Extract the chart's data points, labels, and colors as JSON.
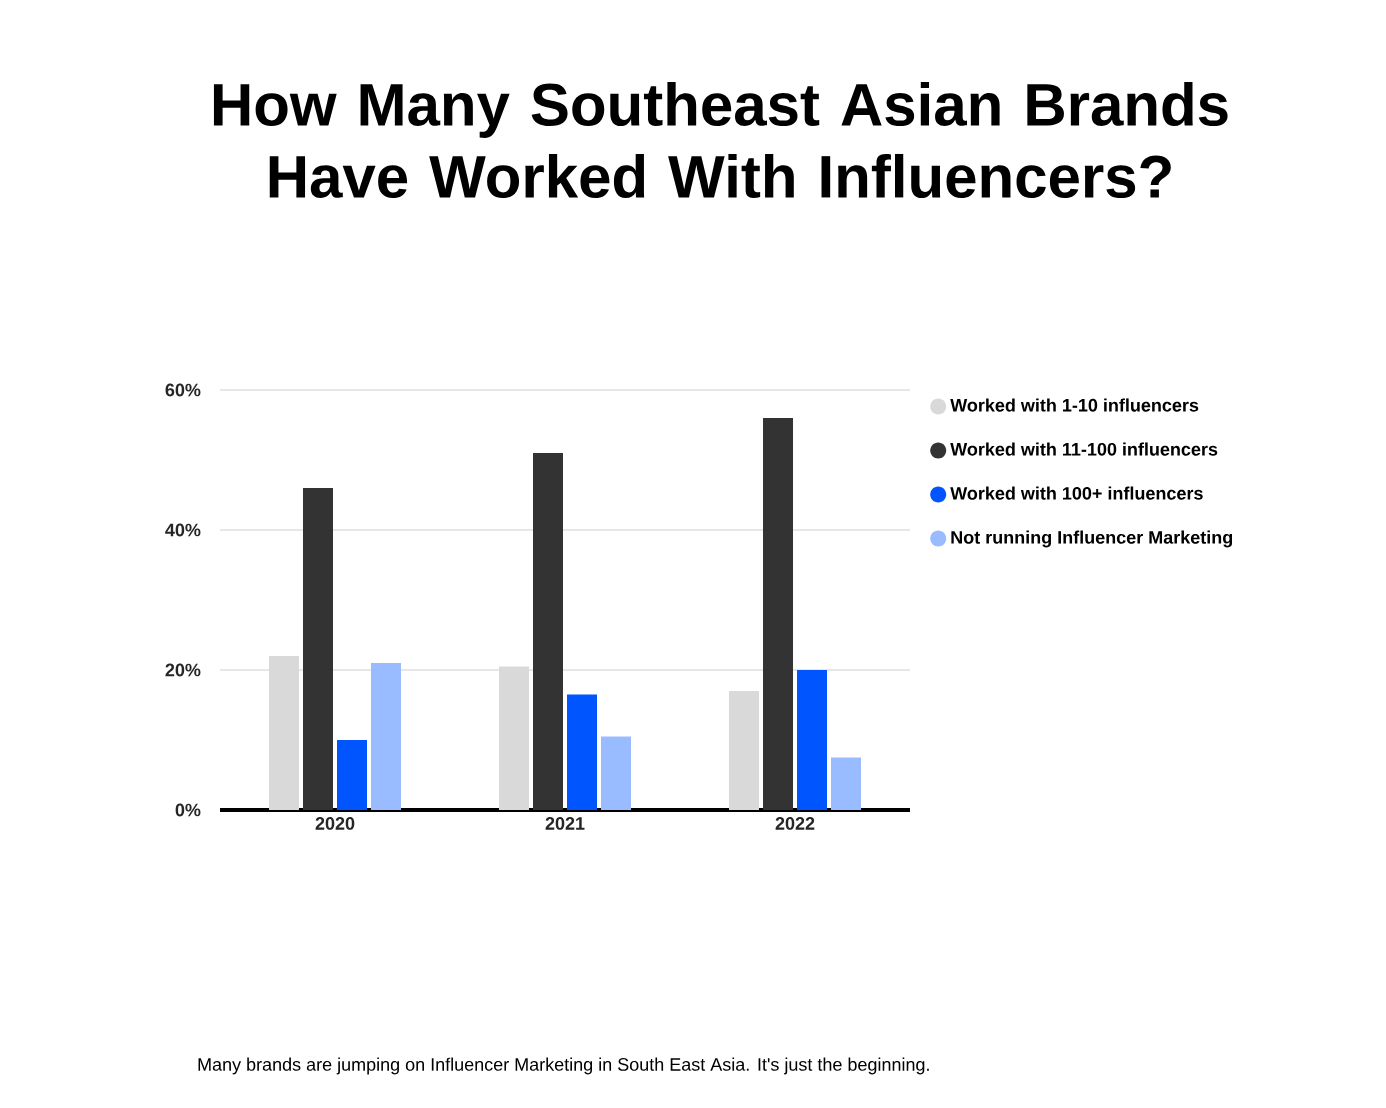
{
  "chart_data": {
    "type": "bar",
    "title": "How Many Southeast Asian Brands Have Worked With Influencers?",
    "categories": [
      "2020",
      "2021",
      "2022"
    ],
    "series": [
      {
        "name": "Worked with 1-10 influencers",
        "color": "#d9d9d9",
        "values": [
          22,
          20.5,
          17
        ]
      },
      {
        "name": "Worked with 11-100 influencers",
        "color": "#333333",
        "values": [
          46,
          51,
          56
        ]
      },
      {
        "name": "Worked with 100+ influencers",
        "color": "#0055ff",
        "values": [
          10,
          16.5,
          20
        ]
      },
      {
        "name": "Not running Influencer Marketing",
        "color": "#99bbff",
        "values": [
          21,
          10.5,
          7.5
        ]
      }
    ],
    "ylim": [
      0,
      60
    ],
    "yticks": [
      {
        "value": 0,
        "label": "0%"
      },
      {
        "value": 20,
        "label": "20%"
      },
      {
        "value": 40,
        "label": "40%"
      },
      {
        "value": 60,
        "label": "60%"
      }
    ],
    "grid": "y",
    "legend": "right",
    "marker": "circle",
    "annotations": [
      "Many brands are jumping on Influencer Marketing in South East Asia. It's just the beginning."
    ]
  }
}
